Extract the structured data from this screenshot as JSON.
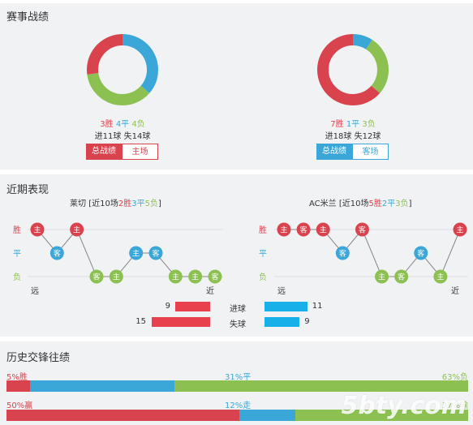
{
  "record": {
    "title": "赛事战绩",
    "left": {
      "wins": "3胜",
      "draws": "4平",
      "losses": "4负",
      "win_count": 3,
      "draw_count": 4,
      "loss_count": 4,
      "goals": "进11球",
      "conceded": "失14球",
      "tab_active": "总战绩",
      "tab_other": "主场"
    },
    "right": {
      "wins": "7胜",
      "draws": "1平",
      "losses": "3负",
      "win_count": 7,
      "draw_count": 1,
      "loss_count": 3,
      "goals": "进18球",
      "conceded": "失12球",
      "tab_active": "总战绩",
      "tab_other": "客场"
    },
    "colors": {
      "win": "#d9434e",
      "draw": "#3aa7d8",
      "loss": "#8cc152"
    }
  },
  "recent": {
    "title": "近期表现",
    "row_labels": [
      "胜",
      "平",
      "负"
    ],
    "far_label": "远",
    "near_label": "近",
    "left": {
      "team": "莱切",
      "summary_pre": "[近10场",
      "wins": "2胜",
      "draws": "3平",
      "losses": "5负",
      "summary_post": "]",
      "matches": [
        {
          "venue": "主",
          "result": "W"
        },
        {
          "venue": "客",
          "result": "D"
        },
        {
          "venue": "主",
          "result": "W"
        },
        {
          "venue": "客",
          "result": "L"
        },
        {
          "venue": "主",
          "result": "L"
        },
        {
          "venue": "主",
          "result": "D"
        },
        {
          "venue": "客",
          "result": "D"
        },
        {
          "venue": "主",
          "result": "L"
        },
        {
          "venue": "主",
          "result": "L"
        },
        {
          "venue": "客",
          "result": "L"
        }
      ]
    },
    "right": {
      "team": "AC米兰",
      "summary_pre": "[近10场",
      "wins": "5胜",
      "draws": "2平",
      "losses": "3负",
      "summary_post": "]",
      "matches": [
        {
          "venue": "主",
          "result": "W"
        },
        {
          "venue": "客",
          "result": "W"
        },
        {
          "venue": "主",
          "result": "W"
        },
        {
          "venue": "客",
          "result": "D"
        },
        {
          "venue": "客",
          "result": "W"
        },
        {
          "venue": "主",
          "result": "L"
        },
        {
          "venue": "客",
          "result": "L"
        },
        {
          "venue": "客",
          "result": "D"
        },
        {
          "venue": "主",
          "result": "L"
        },
        {
          "venue": "主",
          "result": "W"
        }
      ]
    },
    "goals_label": "进球",
    "conceded_label": "失球",
    "left_goals": "9",
    "left_conceded": "15",
    "right_goals": "11",
    "right_conceded": "9",
    "left_goals_value": 9,
    "left_conceded_value": 15,
    "right_goals_value": 11,
    "right_conceded_value": 9,
    "bar_colors": {
      "left": "#e8404c",
      "right": "#17b0e8"
    }
  },
  "history": {
    "title": "历史交锋往绩",
    "row1": {
      "left_text": "5%胜",
      "mid_text": "31%平",
      "right_text": "63%负",
      "left_pct": 5,
      "mid_pct": 31,
      "right_pct": 63
    },
    "row2": {
      "left_text": "50%赢",
      "mid_text": "12%走",
      "right_text": "37%输",
      "left_pct": 50,
      "mid_pct": 12,
      "right_pct": 37
    },
    "colors": {
      "left": "#d9434e",
      "mid": "#3aa7d8",
      "right": "#8cc152"
    },
    "watermark": "5bty.com"
  }
}
